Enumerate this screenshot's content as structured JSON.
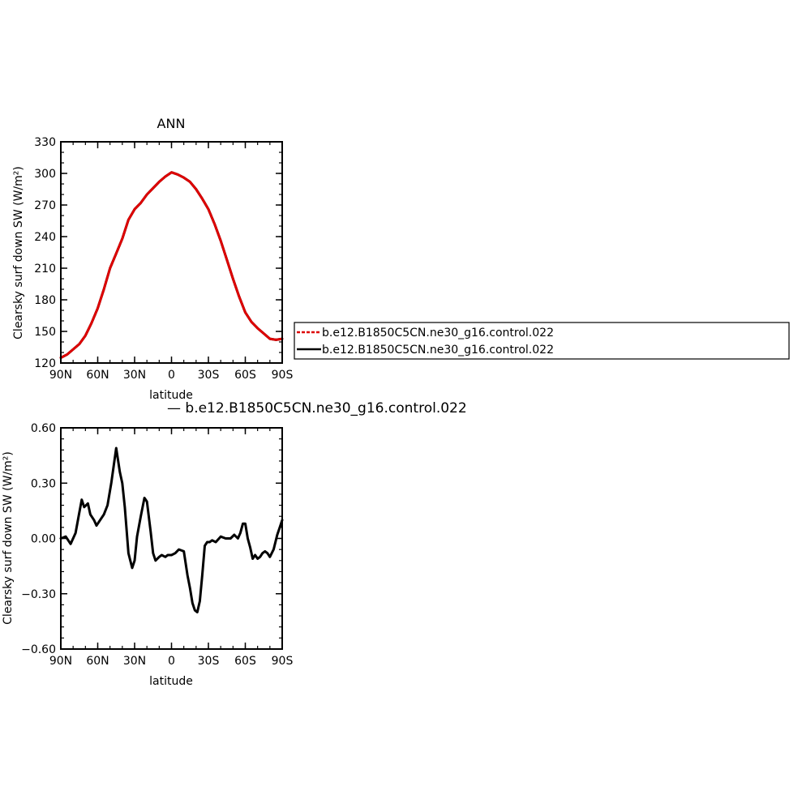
{
  "chart_data": [
    {
      "type": "line",
      "title": "ANN",
      "xlabel": "latitude",
      "ylabel": "Clearsky surf down SW (W/m²)",
      "xlim": [
        -90,
        90
      ],
      "ylim": [
        120,
        330
      ],
      "xticks": [
        {
          "value": -90,
          "label": "90N"
        },
        {
          "value": -60,
          "label": "60N"
        },
        {
          "value": -30,
          "label": "30N"
        },
        {
          "value": 0,
          "label": "0"
        },
        {
          "value": 30,
          "label": "30S"
        },
        {
          "value": 60,
          "label": "60S"
        },
        {
          "value": 90,
          "label": "90S"
        }
      ],
      "yticks": [
        {
          "value": 120,
          "label": "120"
        },
        {
          "value": 150,
          "label": "150"
        },
        {
          "value": 180,
          "label": "180"
        },
        {
          "value": 210,
          "label": "210"
        },
        {
          "value": 240,
          "label": "240"
        },
        {
          "value": 270,
          "label": "270"
        },
        {
          "value": 300,
          "label": "300"
        },
        {
          "value": 330,
          "label": "330"
        }
      ],
      "series": [
        {
          "name": "b.e12.B1850C5CN.ne30_g16.control.022",
          "color": "#dd0000",
          "dashed": true,
          "x": [
            -90,
            -85,
            -80,
            -75,
            -70,
            -65,
            -60,
            -55,
            -50,
            -45,
            -40,
            -35,
            -30,
            -25,
            -20,
            -15,
            -10,
            -5,
            0,
            5,
            10,
            15,
            20,
            25,
            30,
            35,
            40,
            45,
            50,
            55,
            60,
            65,
            70,
            75,
            80,
            85,
            90
          ],
          "y": [
            125,
            128,
            133,
            138,
            146,
            158,
            172,
            190,
            210,
            224,
            238,
            256,
            266,
            272,
            280,
            286,
            292,
            297,
            301,
            299,
            296,
            292,
            285,
            276,
            266,
            252,
            236,
            218,
            200,
            183,
            168,
            159,
            153,
            148,
            143,
            142,
            143
          ]
        },
        {
          "name": "b.e12.B1850C5CN.ne30_g16.control.022",
          "color": "#000000",
          "dashed": false,
          "x": [
            -90,
            -85,
            -80,
            -75,
            -70,
            -65,
            -60,
            -55,
            -50,
            -45,
            -40,
            -35,
            -30,
            -25,
            -20,
            -15,
            -10,
            -5,
            0,
            5,
            10,
            15,
            20,
            25,
            30,
            35,
            40,
            45,
            50,
            55,
            60,
            65,
            70,
            75,
            80,
            85,
            90
          ],
          "y": [
            125,
            128,
            133,
            138,
            146,
            158,
            172,
            190,
            210,
            224,
            238,
            256,
            266,
            272,
            280,
            286,
            292,
            297,
            301,
            299,
            296,
            292,
            285,
            276,
            266,
            252,
            236,
            218,
            200,
            183,
            168,
            159,
            153,
            148,
            143,
            142,
            143
          ]
        }
      ]
    },
    {
      "type": "line",
      "title": "— b.e12.B1850C5CN.ne30_g16.control.022",
      "xlabel": "latitude",
      "ylabel": "Clearsky surf down SW (W/m²)",
      "xlim": [
        -90,
        90
      ],
      "ylim": [
        -0.6,
        0.6
      ],
      "xticks": [
        {
          "value": -90,
          "label": "90N"
        },
        {
          "value": -60,
          "label": "60N"
        },
        {
          "value": -30,
          "label": "30N"
        },
        {
          "value": 0,
          "label": "0"
        },
        {
          "value": 30,
          "label": "30S"
        },
        {
          "value": 60,
          "label": "60S"
        },
        {
          "value": 90,
          "label": "90S"
        }
      ],
      "yticks": [
        {
          "value": -0.6,
          "label": "−0.60"
        },
        {
          "value": -0.3,
          "label": "−0.30"
        },
        {
          "value": 0,
          "label": "0.00"
        },
        {
          "value": 0.3,
          "label": "0.30"
        },
        {
          "value": 0.6,
          "label": "0.60"
        }
      ],
      "series": [
        {
          "color": "#000000",
          "x": [
            -90,
            -86,
            -82,
            -78,
            -75,
            -73,
            -71,
            -68,
            -66,
            -63,
            -61,
            -58,
            -55,
            -52,
            -49,
            -45,
            -42,
            -40,
            -38,
            -35,
            -32,
            -30,
            -28,
            -25,
            -22,
            -20,
            -17,
            -15,
            -13,
            -10,
            -8,
            -5,
            -3,
            0,
            3,
            6,
            10,
            13,
            15,
            17,
            19,
            21,
            23,
            25,
            27,
            29,
            31,
            33,
            36,
            40,
            44,
            48,
            51,
            54,
            56,
            58,
            60,
            62,
            64,
            66,
            68,
            70,
            72,
            74,
            76,
            78,
            80,
            83,
            86,
            88,
            90
          ],
          "y": [
            0.0,
            0.01,
            -0.03,
            0.03,
            0.14,
            0.21,
            0.17,
            0.19,
            0.13,
            0.1,
            0.07,
            0.1,
            0.13,
            0.18,
            0.3,
            0.49,
            0.36,
            0.3,
            0.17,
            -0.08,
            -0.16,
            -0.12,
            0.01,
            0.12,
            0.22,
            0.2,
            0.04,
            -0.08,
            -0.12,
            -0.1,
            -0.09,
            -0.1,
            -0.09,
            -0.09,
            -0.08,
            -0.06,
            -0.07,
            -0.2,
            -0.27,
            -0.35,
            -0.39,
            -0.4,
            -0.34,
            -0.2,
            -0.04,
            -0.02,
            -0.02,
            -0.01,
            -0.02,
            0.01,
            0.0,
            0.0,
            0.02,
            0.0,
            0.03,
            0.08,
            0.08,
            0.0,
            -0.05,
            -0.11,
            -0.09,
            -0.11,
            -0.1,
            -0.08,
            -0.07,
            -0.08,
            -0.1,
            -0.06,
            0.02,
            0.06,
            0.1
          ]
        }
      ]
    }
  ],
  "legend": {
    "entries": [
      {
        "label": "b.e12.B1850C5CN.ne30_g16.control.022",
        "color": "#dd0000",
        "dashed": true
      },
      {
        "label": "b.e12.B1850C5CN.ne30_g16.control.022",
        "color": "#000000",
        "dashed": false
      }
    ]
  }
}
